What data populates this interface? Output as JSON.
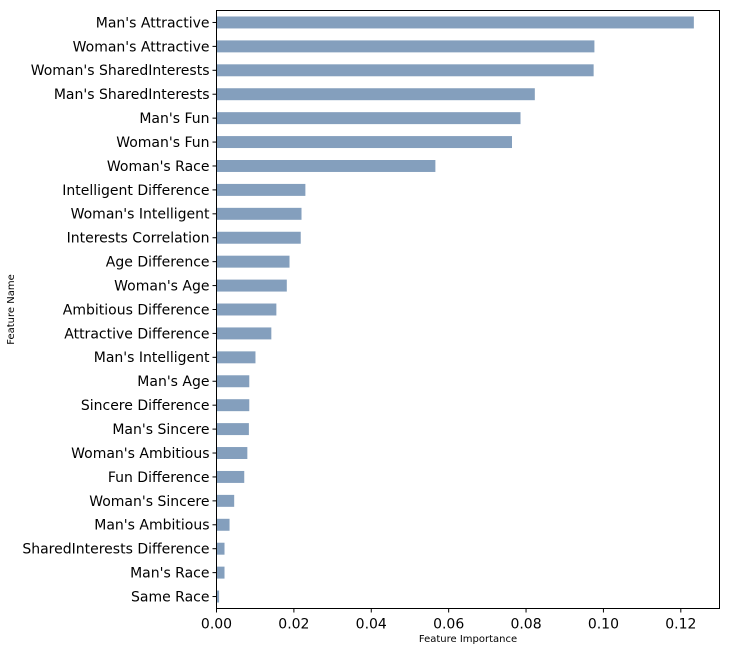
{
  "chart_data": {
    "type": "bar",
    "orientation": "horizontal",
    "title": "",
    "xlabel": "Feature Importance",
    "ylabel": "Feature Name",
    "xlim": [
      0,
      0.13
    ],
    "xticks": [
      0.0,
      0.02,
      0.04,
      0.06,
      0.08,
      0.1,
      0.12
    ],
    "xtick_labels": [
      "0.00",
      "0.02",
      "0.04",
      "0.06",
      "0.08",
      "0.10",
      "0.12"
    ],
    "grid": false,
    "bar_color": "#849fbd",
    "categories": [
      "Man's Attractive",
      "Woman's Attractive",
      "Woman's SharedInterests",
      "Man's SharedInterests",
      "Man's Fun",
      "Woman's Fun",
      "Woman's Race",
      "Intelligent Difference",
      "Woman's Intelligent",
      "Interests Correlation",
      "Age Difference",
      "Woman's Age",
      "Ambitious Difference",
      "Attractive Difference",
      "Man's Intelligent",
      "Man's Age",
      "Sincere Difference",
      "Man's Sincere",
      "Woman's Ambitious",
      "Fun Difference",
      "Woman's Sincere",
      "Man's Ambitious",
      "SharedInterests Difference",
      "Man's Race",
      "Same Race"
    ],
    "values": [
      0.1235,
      0.0978,
      0.0976,
      0.0824,
      0.0787,
      0.0765,
      0.0567,
      0.0231,
      0.0221,
      0.0219,
      0.019,
      0.0183,
      0.0156,
      0.0143,
      0.0102,
      0.0086,
      0.0086,
      0.0085,
      0.0081,
      0.0073,
      0.0047,
      0.0035,
      0.0022,
      0.0022,
      0.0008
    ]
  }
}
